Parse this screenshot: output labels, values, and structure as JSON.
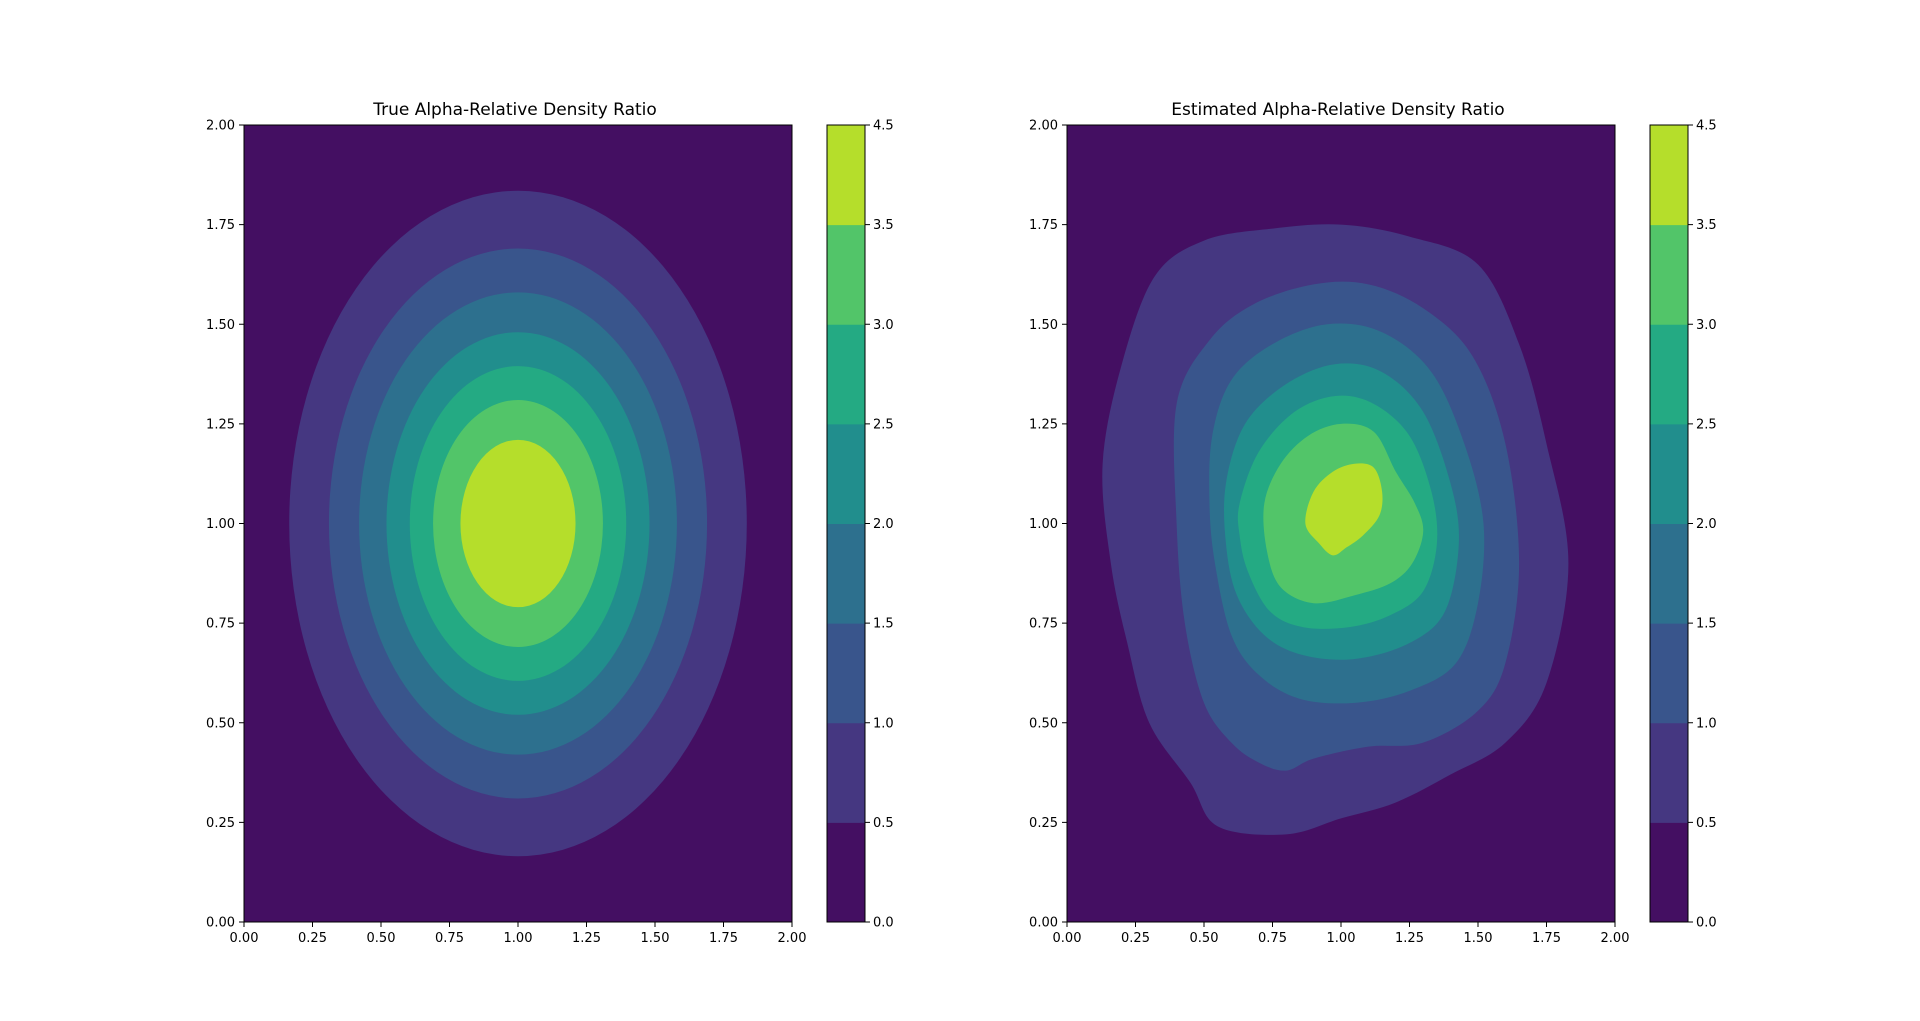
{
  "chart_data": [
    {
      "type": "contour",
      "title": "True Alpha-Relative Density Ratio",
      "xlabel": "",
      "ylabel": "",
      "xlim": [
        0,
        2
      ],
      "ylim": [
        0,
        2
      ],
      "x_ticks": [
        "0.00",
        "0.25",
        "0.50",
        "0.75",
        "1.00",
        "1.25",
        "1.50",
        "1.75",
        "2.00"
      ],
      "y_ticks": [
        "0.00",
        "0.25",
        "0.50",
        "0.75",
        "1.00",
        "1.25",
        "1.50",
        "1.75",
        "2.00"
      ],
      "colorbar": {
        "levels": [
          0.0,
          0.5,
          1.0,
          1.5,
          2.0,
          2.5,
          3.0,
          3.5,
          4.5
        ],
        "tick_labels": [
          "0.0",
          "0.5",
          "1.0",
          "1.5",
          "2.0",
          "2.5",
          "3.0",
          "3.5",
          "4.5"
        ],
        "colors": [
          "#440f62",
          "#453781",
          "#39558c",
          "#2d708e",
          "#218e8d",
          "#24aa83",
          "#52c569",
          "#b5de2b"
        ]
      },
      "contours": [
        {
          "level": 0.5,
          "center": [
            1.0,
            1.0
          ],
          "radius_x": 0.835,
          "radius_y": 0.835
        },
        {
          "level": 1.0,
          "center": [
            1.0,
            1.0
          ],
          "radius_x": 0.69,
          "radius_y": 0.69
        },
        {
          "level": 1.5,
          "center": [
            1.0,
            1.0
          ],
          "radius_x": 0.58,
          "radius_y": 0.58
        },
        {
          "level": 2.0,
          "center": [
            1.0,
            1.0
          ],
          "radius_x": 0.48,
          "radius_y": 0.48
        },
        {
          "level": 2.5,
          "center": [
            1.0,
            1.0
          ],
          "radius_x": 0.395,
          "radius_y": 0.395
        },
        {
          "level": 3.0,
          "center": [
            1.0,
            1.0
          ],
          "radius_x": 0.31,
          "radius_y": 0.31
        },
        {
          "level": 3.5,
          "center": [
            1.0,
            1.0
          ],
          "radius_x": 0.21,
          "radius_y": 0.21
        }
      ]
    },
    {
      "type": "contour",
      "title": "Estimated Alpha-Relative Density Ratio",
      "xlabel": "",
      "ylabel": "",
      "xlim": [
        0,
        2
      ],
      "ylim": [
        0,
        2
      ],
      "x_ticks": [
        "0.00",
        "0.25",
        "0.50",
        "0.75",
        "1.00",
        "1.25",
        "1.50",
        "1.75",
        "2.00"
      ],
      "y_ticks": [
        "0.00",
        "0.25",
        "0.50",
        "0.75",
        "1.00",
        "1.25",
        "1.50",
        "1.75",
        "2.00"
      ],
      "colorbar": {
        "levels": [
          0.0,
          0.5,
          1.0,
          1.5,
          2.0,
          2.5,
          3.0,
          3.5,
          4.5
        ],
        "tick_labels": [
          "0.0",
          "0.5",
          "1.0",
          "1.5",
          "2.0",
          "2.5",
          "3.0",
          "3.5",
          "4.5"
        ],
        "colors": [
          "#440f62",
          "#453781",
          "#39558c",
          "#2d708e",
          "#218e8d",
          "#24aa83",
          "#52c569",
          "#b5de2b"
        ]
      },
      "contours": [
        {
          "level": 0.5,
          "points": [
            [
              0.13,
              1.15
            ],
            [
              0.2,
              1.4
            ],
            [
              0.32,
              1.62
            ],
            [
              0.5,
              1.71
            ],
            [
              0.75,
              1.74
            ],
            [
              1.0,
              1.75
            ],
            [
              1.25,
              1.72
            ],
            [
              1.5,
              1.65
            ],
            [
              1.65,
              1.45
            ],
            [
              1.75,
              1.2
            ],
            [
              1.83,
              0.9
            ],
            [
              1.75,
              0.6
            ],
            [
              1.6,
              0.45
            ],
            [
              1.4,
              0.37
            ],
            [
              1.2,
              0.3
            ],
            [
              1.0,
              0.26
            ],
            [
              0.8,
              0.22
            ],
            [
              0.55,
              0.24
            ],
            [
              0.45,
              0.35
            ],
            [
              0.3,
              0.5
            ],
            [
              0.22,
              0.7
            ],
            [
              0.16,
              0.9
            ]
          ]
        },
        {
          "level": 1.0,
          "points": [
            [
              0.4,
              1.3
            ],
            [
              0.52,
              1.46
            ],
            [
              0.68,
              1.55
            ],
            [
              0.9,
              1.6
            ],
            [
              1.1,
              1.6
            ],
            [
              1.3,
              1.54
            ],
            [
              1.48,
              1.42
            ],
            [
              1.6,
              1.2
            ],
            [
              1.65,
              0.9
            ],
            [
              1.6,
              0.65
            ],
            [
              1.5,
              0.53
            ],
            [
              1.3,
              0.45
            ],
            [
              1.1,
              0.44
            ],
            [
              0.9,
              0.41
            ],
            [
              0.8,
              0.38
            ],
            [
              0.7,
              0.4
            ],
            [
              0.6,
              0.45
            ],
            [
              0.5,
              0.55
            ],
            [
              0.43,
              0.75
            ],
            [
              0.4,
              1.0
            ]
          ]
        },
        {
          "level": 1.5,
          "points": [
            [
              0.53,
              1.22
            ],
            [
              0.6,
              1.36
            ],
            [
              0.75,
              1.45
            ],
            [
              0.95,
              1.5
            ],
            [
              1.15,
              1.48
            ],
            [
              1.33,
              1.38
            ],
            [
              1.45,
              1.2
            ],
            [
              1.52,
              1.0
            ],
            [
              1.5,
              0.8
            ],
            [
              1.42,
              0.65
            ],
            [
              1.25,
              0.58
            ],
            [
              1.05,
              0.55
            ],
            [
              0.85,
              0.56
            ],
            [
              0.7,
              0.62
            ],
            [
              0.6,
              0.72
            ],
            [
              0.54,
              0.9
            ],
            [
              0.52,
              1.05
            ]
          ]
        },
        {
          "level": 2.0,
          "points": [
            [
              0.58,
              1.1
            ],
            [
              0.65,
              1.25
            ],
            [
              0.8,
              1.35
            ],
            [
              0.98,
              1.4
            ],
            [
              1.15,
              1.38
            ],
            [
              1.3,
              1.28
            ],
            [
              1.4,
              1.1
            ],
            [
              1.43,
              0.95
            ],
            [
              1.38,
              0.78
            ],
            [
              1.25,
              0.7
            ],
            [
              1.05,
              0.66
            ],
            [
              0.86,
              0.67
            ],
            [
              0.72,
              0.72
            ],
            [
              0.62,
              0.82
            ],
            [
              0.58,
              0.95
            ]
          ]
        },
        {
          "level": 2.5,
          "points": [
            [
              0.63,
              1.05
            ],
            [
              0.7,
              1.18
            ],
            [
              0.83,
              1.28
            ],
            [
              0.98,
              1.32
            ],
            [
              1.12,
              1.3
            ],
            [
              1.25,
              1.22
            ],
            [
              1.33,
              1.08
            ],
            [
              1.35,
              0.95
            ],
            [
              1.3,
              0.83
            ],
            [
              1.18,
              0.77
            ],
            [
              1.03,
              0.74
            ],
            [
              0.86,
              0.74
            ],
            [
              0.74,
              0.78
            ],
            [
              0.66,
              0.88
            ],
            [
              0.63,
              0.97
            ]
          ]
        },
        {
          "level": 3.0,
          "points": [
            [
              0.72,
              1.05
            ],
            [
              0.78,
              1.15
            ],
            [
              0.88,
              1.22
            ],
            [
              1.0,
              1.25
            ],
            [
              1.12,
              1.23
            ],
            [
              1.2,
              1.13
            ],
            [
              1.27,
              1.05
            ],
            [
              1.3,
              0.98
            ],
            [
              1.26,
              0.9
            ],
            [
              1.18,
              0.85
            ],
            [
              1.05,
              0.82
            ],
            [
              0.9,
              0.8
            ],
            [
              0.78,
              0.84
            ],
            [
              0.73,
              0.93
            ]
          ]
        },
        {
          "level": 3.5,
          "points": [
            [
              0.87,
              1.0
            ],
            [
              0.9,
              1.08
            ],
            [
              0.97,
              1.13
            ],
            [
              1.05,
              1.15
            ],
            [
              1.12,
              1.14
            ],
            [
              1.15,
              1.08
            ],
            [
              1.14,
              1.02
            ],
            [
              1.08,
              0.97
            ],
            [
              1.02,
              0.94
            ],
            [
              0.97,
              0.92
            ],
            [
              0.92,
              0.95
            ]
          ]
        }
      ]
    }
  ]
}
